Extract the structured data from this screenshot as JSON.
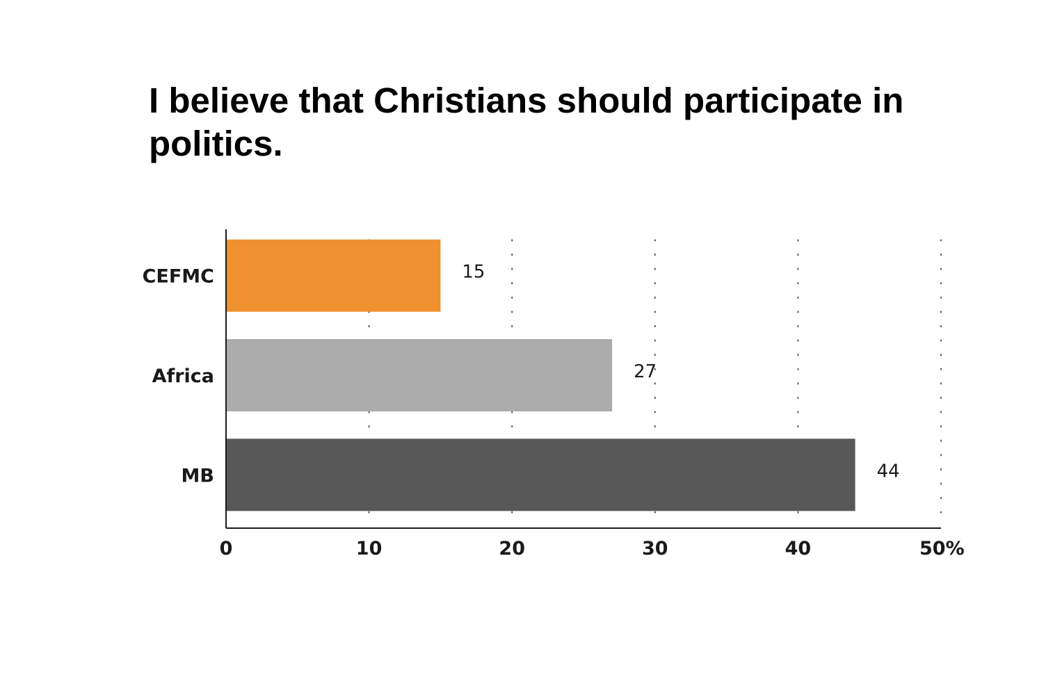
{
  "chart_data": {
    "type": "bar",
    "orientation": "horizontal",
    "title": "I believe that Christians should participate in politics.",
    "categories": [
      "CEFMC",
      "Africa",
      "MB"
    ],
    "values": [
      15,
      27,
      44
    ],
    "data_labels": [
      "15",
      "27",
      "44"
    ],
    "colors": [
      "#f0902e",
      "#acacac",
      "#585858"
    ],
    "xlim": [
      0,
      50
    ],
    "x_ticks": [
      0,
      10,
      20,
      30,
      40,
      50
    ],
    "x_tick_labels": [
      "0",
      "10",
      "20",
      "30",
      "40",
      "50%"
    ],
    "xlabel": "",
    "ylabel": "",
    "grid": "dotted vertical",
    "legend": "none"
  }
}
